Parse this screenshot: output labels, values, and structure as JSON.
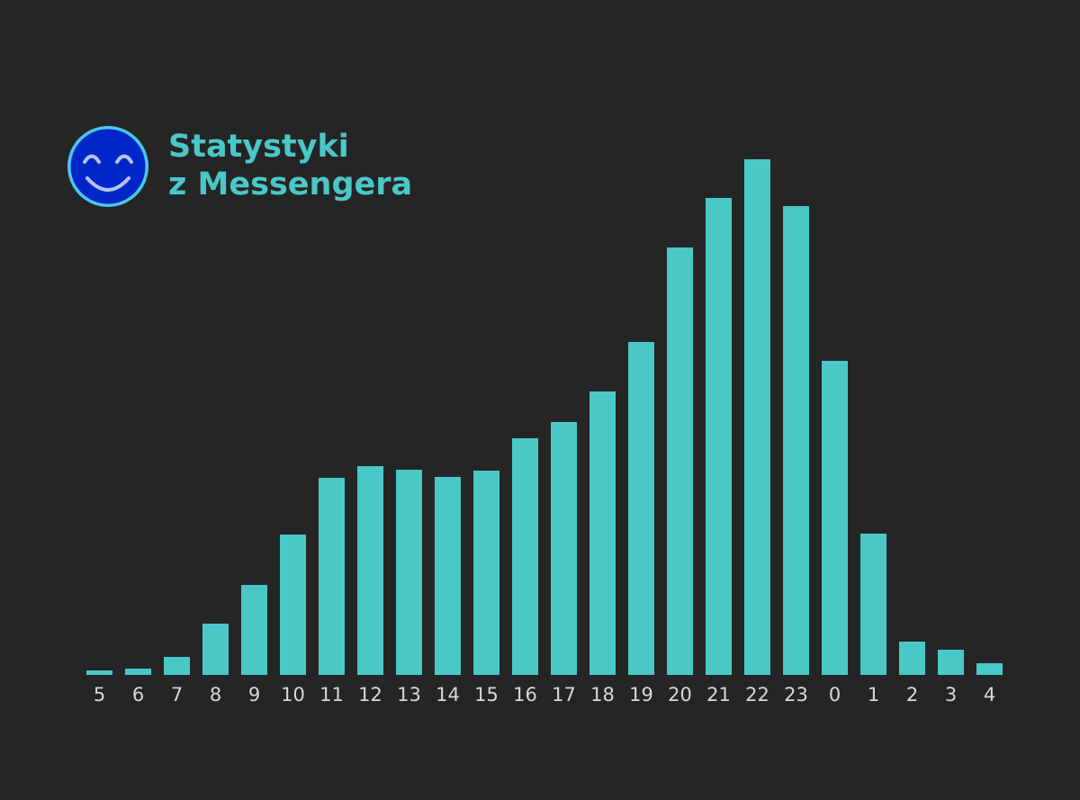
{
  "header": {
    "title_line1": "Statystyki",
    "title_line2": "z Messengera",
    "logo_icon": "smiley-face-icon"
  },
  "colors": {
    "background": "#252525",
    "bar": "#4ac8c8",
    "title": "#4ac8c8",
    "logo_fill": "#0026c8",
    "logo_ring": "#4ac8e8",
    "logo_face": "#b4c4f0",
    "tick_label": "#d8d8d8"
  },
  "chart_data": {
    "type": "bar",
    "title": "",
    "xlabel": "",
    "ylabel": "",
    "categories": [
      "5",
      "6",
      "7",
      "8",
      "9",
      "10",
      "11",
      "12",
      "13",
      "14",
      "15",
      "16",
      "17",
      "18",
      "19",
      "20",
      "21",
      "22",
      "23",
      "0",
      "1",
      "2",
      "3",
      "4"
    ],
    "values": [
      5,
      7,
      20,
      57,
      100,
      156,
      219,
      232,
      228,
      220,
      227,
      263,
      281,
      315,
      370,
      475,
      530,
      573,
      521,
      349,
      157,
      37,
      28,
      13
    ],
    "ylim": [
      0,
      573
    ],
    "grid": false,
    "y_axis_visible": false
  }
}
